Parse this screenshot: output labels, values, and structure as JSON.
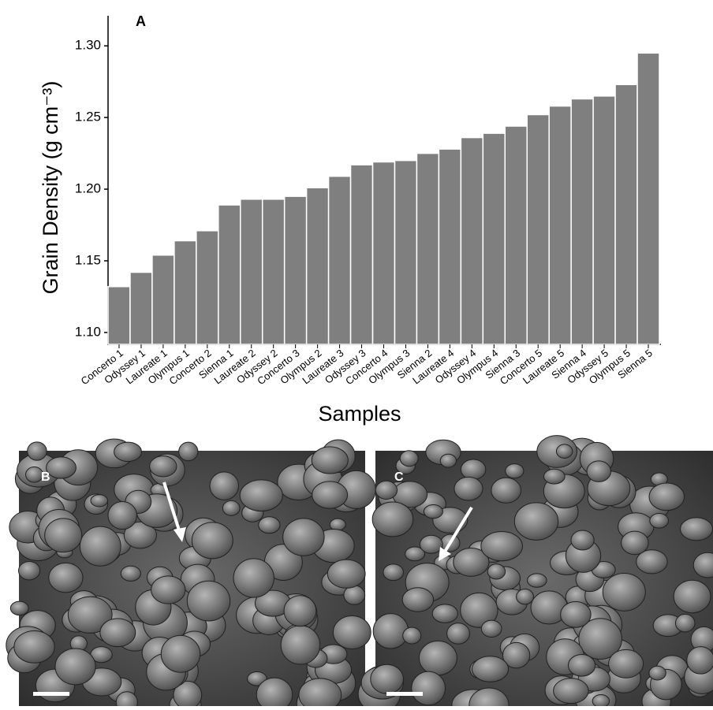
{
  "chart_data": {
    "type": "bar",
    "panel_label": "A",
    "categories": [
      "Concerto 1",
      "Odyssey 1",
      "Laureate 1",
      "Olympus 1",
      "Concerto 2",
      "Sienna 1",
      "Laureate 2",
      "Odyssey 2",
      "Concerto 3",
      "Olympus 2",
      "Laureate 3",
      "Odyssey 3",
      "Concerto 4",
      "Olympus 3",
      "Sienna 2",
      "Laureate 4",
      "Odyssey 4",
      "Olympus 4",
      "Sienna 3",
      "Concerto 5",
      "Laureate 5",
      "Sienna 4",
      "Odyssey 5",
      "Olympus 5",
      "Sienna 5"
    ],
    "values": [
      1.132,
      1.142,
      1.154,
      1.164,
      1.171,
      1.189,
      1.193,
      1.193,
      1.195,
      1.201,
      1.209,
      1.217,
      1.219,
      1.22,
      1.225,
      1.228,
      1.236,
      1.239,
      1.244,
      1.252,
      1.258,
      1.263,
      1.265,
      1.273,
      1.295
    ],
    "color": "#7f7f7f",
    "xlabel": "Samples",
    "ylabel": "Grain Density (g cm⁻³)",
    "ylim": [
      1.0917,
      1.31
    ],
    "yticks": [
      {
        "value": 1.1,
        "label": "1.10"
      },
      1.15,
      {
        "value": 1.2,
        "label": "1.20"
      },
      1.25,
      {
        "value": 1.3,
        "label": "1.30"
      }
    ],
    "grid": false
  },
  "panels": [
    {
      "label": "B"
    },
    {
      "label": "C"
    }
  ]
}
